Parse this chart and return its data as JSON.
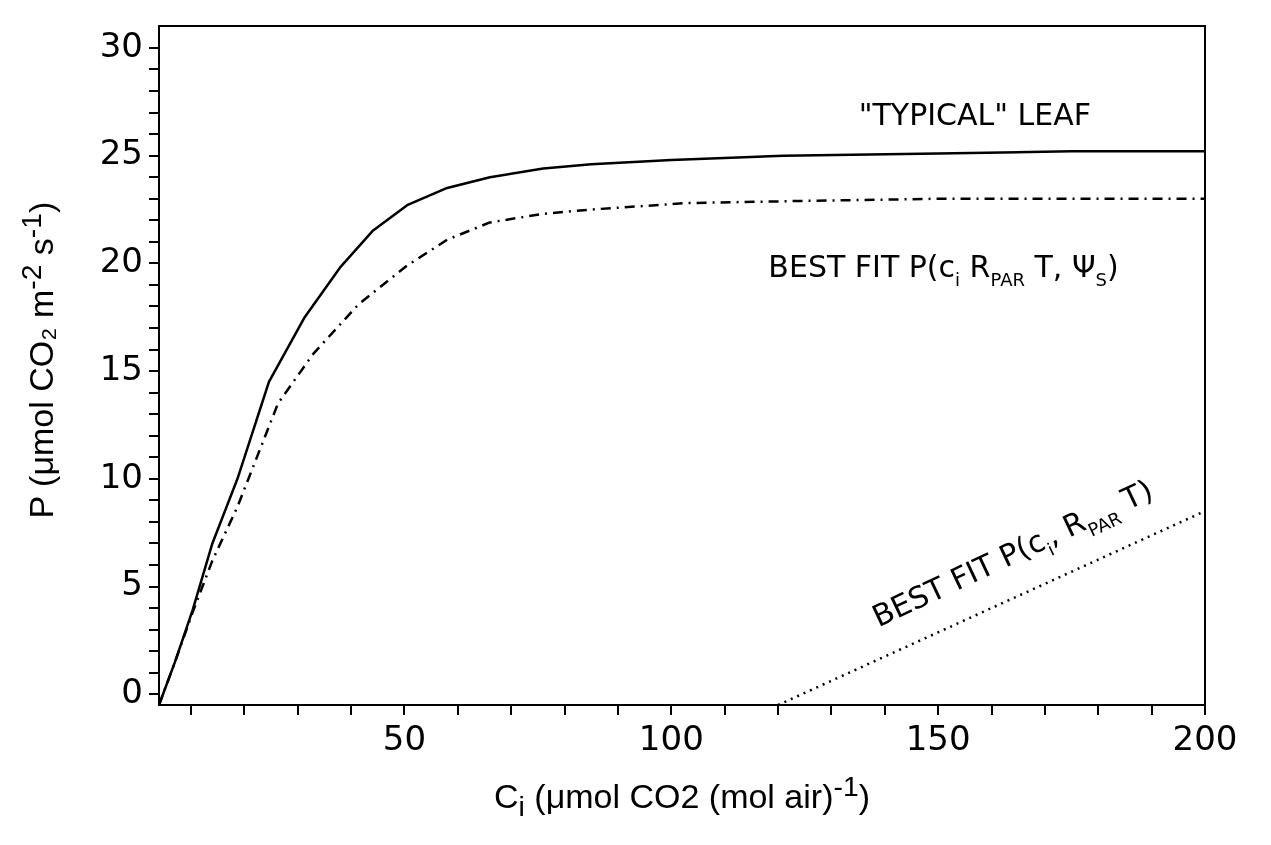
{
  "chart_data": {
    "type": "line",
    "xlabel": "C$_{i}$ (μmol CO2 (mol air)$^{-1}$)",
    "ylabel": "P (μmol CO₂ m$^{-2}$ s$^{-1}$)",
    "xlim": [
      4,
      200
    ],
    "ylim": [
      -0.5,
      31
    ],
    "xticks": [
      {
        "value": 10,
        "label": null
      },
      {
        "value": 20,
        "label": null
      },
      {
        "value": 30,
        "label": null
      },
      {
        "value": 40,
        "label": null
      },
      50,
      {
        "value": 60,
        "label": null
      },
      {
        "value": 70,
        "label": null
      },
      {
        "value": 80,
        "label": null
      },
      {
        "value": 90,
        "label": null
      },
      100,
      {
        "value": 110,
        "label": null
      },
      {
        "value": 120,
        "label": null
      },
      {
        "value": 130,
        "label": null
      },
      {
        "value": 140,
        "label": null
      },
      150,
      {
        "value": 160,
        "label": null
      },
      {
        "value": 170,
        "label": null
      },
      {
        "value": 180,
        "label": null
      },
      {
        "value": 190,
        "label": null
      },
      200
    ],
    "yticks": [
      0,
      {
        "value": 1,
        "label": null
      },
      {
        "value": 2,
        "label": null
      },
      {
        "value": 3,
        "label": null
      },
      {
        "value": 4,
        "label": null
      },
      5,
      {
        "value": 6,
        "label": null
      },
      {
        "value": 7,
        "label": null
      },
      {
        "value": 8,
        "label": null
      },
      {
        "value": 9,
        "label": null
      },
      10,
      {
        "value": 11,
        "label": null
      },
      {
        "value": 12,
        "label": null
      },
      {
        "value": 13,
        "label": null
      },
      {
        "value": 14,
        "label": null
      },
      15,
      {
        "value": 16,
        "label": null
      },
      {
        "value": 17,
        "label": null
      },
      {
        "value": 18,
        "label": null
      },
      {
        "value": 19,
        "label": null
      },
      20,
      {
        "value": 21,
        "label": null
      },
      {
        "value": 22,
        "label": null
      },
      {
        "value": 23,
        "label": null
      },
      {
        "value": 24,
        "label": null
      },
      25,
      {
        "value": 26,
        "label": null
      },
      {
        "value": 27,
        "label": null
      },
      {
        "value": 28,
        "label": null
      },
      {
        "value": 29,
        "label": null
      },
      30
    ],
    "grid": false,
    "legend": false,
    "marker": "none",
    "series": [
      {
        "color": "#000000",
        "line_style": "solid",
        "x": [
          4,
          7,
          10.3,
          14,
          18.7,
          24.6,
          31.3,
          37.9,
          44,
          50.5,
          58,
          66,
          76,
          85,
          100,
          121,
          150,
          175,
          200
        ],
        "values": [
          -0.5,
          1.5,
          3.9,
          7,
          10,
          14.5,
          17.5,
          19.8,
          21.5,
          22.7,
          23.5,
          24,
          24.4,
          24.6,
          24.8,
          25,
          25.1,
          25.2,
          25.2
        ]
      },
      {
        "color": "#000000",
        "line_style": "dashed",
        "x": [
          4,
          7,
          10.3,
          14,
          18.7,
          26.3,
          32.9,
          41.4,
          50.5,
          58,
          66,
          76,
          85,
          103,
          125,
          150,
          175,
          200
        ],
        "values": [
          -0.5,
          1.5,
          3.8,
          6.2,
          8.7,
          13.5,
          15.8,
          18.1,
          19.9,
          21.1,
          21.9,
          22.3,
          22.5,
          22.8,
          22.9,
          23,
          23,
          23
        ]
      },
      {
        "color": "#000000",
        "line_style": "dotted",
        "x": [
          120,
          200
        ],
        "values": [
          -0.5,
          8.5
        ]
      }
    ],
    "annotations": [
      "\"TYPICAL\" LEAF",
      "BEST FIT P(c$_{i}$ R$_{PAR}$ T, Ψ$_{S}$)",
      "BEST FIT P(c$_{i}$, R$_{PAR}$ T)"
    ]
  }
}
